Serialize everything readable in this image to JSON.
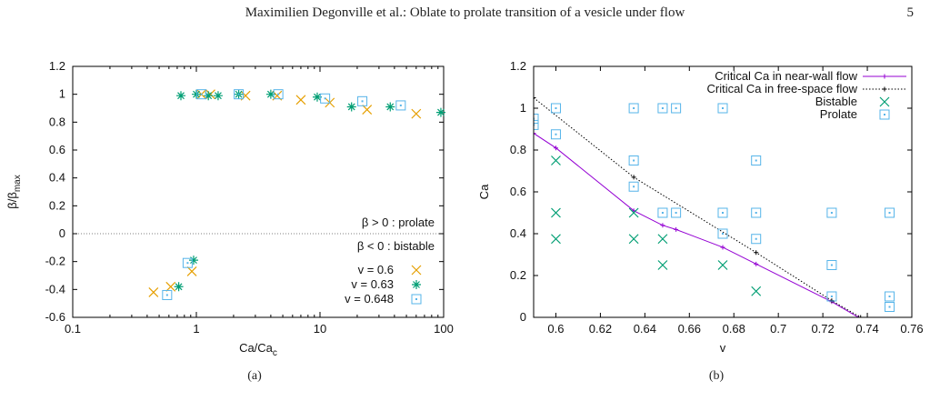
{
  "header": {
    "title": "Maximilien Degonville et al.: Oblate to prolate transition of a vesicle under flow",
    "page_number": "5"
  },
  "colors": {
    "orange": "#e69f00",
    "green": "#009e73",
    "blue": "#56b4e9",
    "purple": "#9400d3",
    "black": "#000000"
  },
  "panels": [
    {
      "caption": "(a)",
      "annotations": [
        "β > 0 : prolate",
        "β < 0 : bistable"
      ]
    },
    {
      "caption": "(b)"
    }
  ],
  "chart_data": [
    {
      "type": "scatter",
      "xlabel": "Ca/Ca",
      "xlabel_sub": "c",
      "ylabel": "β/β",
      "ylabel_sub": "max",
      "xscale": "log",
      "xlim": [
        0.1,
        100
      ],
      "ylim": [
        -0.6,
        1.2
      ],
      "x_ticks": [
        "0.1",
        "1",
        "10",
        "100"
      ],
      "y_ticks": [
        "-0.6",
        "-0.4",
        "-0.2",
        "0",
        "0.2",
        "0.4",
        "0.6",
        "0.8",
        "1",
        "1.2"
      ],
      "legend_position": "bottom-right",
      "series": [
        {
          "name": "v = 0.6",
          "marker": "x",
          "color": "#e69f00",
          "points": [
            [
              0.45,
              -0.42
            ],
            [
              0.62,
              -0.38
            ],
            [
              0.92,
              -0.27
            ],
            [
              1.1,
              1.0
            ],
            [
              1.3,
              1.0
            ],
            [
              2.5,
              0.99
            ],
            [
              4.5,
              0.99
            ],
            [
              7.0,
              0.96
            ],
            [
              12.0,
              0.94
            ],
            [
              24.0,
              0.89
            ],
            [
              60.0,
              0.86
            ]
          ]
        },
        {
          "name": "v = 0.63",
          "marker": "asterisk",
          "color": "#009e73",
          "points": [
            [
              0.72,
              -0.38
            ],
            [
              0.95,
              -0.19
            ],
            [
              0.75,
              0.99
            ],
            [
              1.0,
              1.0
            ],
            [
              1.25,
              0.99
            ],
            [
              1.5,
              0.99
            ],
            [
              2.2,
              1.0
            ],
            [
              4.0,
              1.0
            ],
            [
              9.5,
              0.98
            ],
            [
              18.0,
              0.91
            ],
            [
              37.0,
              0.91
            ],
            [
              95.0,
              0.87
            ]
          ]
        },
        {
          "name": "v = 0.648",
          "marker": "square",
          "color": "#56b4e9",
          "points": [
            [
              0.58,
              -0.44
            ],
            [
              0.85,
              -0.21
            ],
            [
              1.1,
              1.0
            ],
            [
              2.2,
              1.0
            ],
            [
              4.6,
              1.0
            ],
            [
              11.0,
              0.97
            ],
            [
              22.0,
              0.95
            ],
            [
              45.0,
              0.92
            ]
          ]
        }
      ]
    },
    {
      "type": "line",
      "xlabel": "v",
      "ylabel": "Ca",
      "xlim": [
        0.59,
        0.76
      ],
      "ylim": [
        0,
        1.2
      ],
      "x_ticks": [
        "0.6",
        "0.62",
        "0.64",
        "0.66",
        "0.68",
        "0.7",
        "0.72",
        "0.74",
        "0.76"
      ],
      "y_ticks": [
        "0",
        "0.2",
        "0.4",
        "0.6",
        "0.8",
        "1",
        "1.2"
      ],
      "legend_position": "top-right",
      "series": [
        {
          "name": "Critical Ca in near-wall flow",
          "style": "solid",
          "marker": "plus",
          "color": "#9400d3",
          "points": [
            [
              0.59,
              0.88
            ],
            [
              0.6,
              0.81
            ],
            [
              0.635,
              0.51
            ],
            [
              0.648,
              0.44
            ],
            [
              0.654,
              0.42
            ],
            [
              0.675,
              0.335
            ],
            [
              0.69,
              0.255
            ],
            [
              0.724,
              0.075
            ],
            [
              0.736,
              0.0
            ]
          ]
        },
        {
          "name": "Critical Ca in free-space flow",
          "style": "dotted",
          "marker": "plus",
          "color": "#000000",
          "points": [
            [
              0.59,
              1.05
            ],
            [
              0.635,
              0.67
            ],
            [
              0.69,
              0.31
            ],
            [
              0.724,
              0.08
            ],
            [
              0.737,
              0.0
            ]
          ]
        },
        {
          "name": "Bistable",
          "style": "none",
          "marker": "x",
          "color": "#009e73",
          "points": [
            [
              0.6,
              0.75
            ],
            [
              0.6,
              0.5
            ],
            [
              0.6,
              0.375
            ],
            [
              0.635,
              0.5
            ],
            [
              0.635,
              0.375
            ],
            [
              0.648,
              0.375
            ],
            [
              0.648,
              0.25
            ],
            [
              0.675,
              0.25
            ],
            [
              0.69,
              0.125
            ]
          ]
        },
        {
          "name": "Prolate",
          "style": "none",
          "marker": "square",
          "color": "#56b4e9",
          "points": [
            [
              0.59,
              0.95
            ],
            [
              0.59,
              0.92
            ],
            [
              0.6,
              1.0
            ],
            [
              0.6,
              0.875
            ],
            [
              0.635,
              1.0
            ],
            [
              0.635,
              0.75
            ],
            [
              0.635,
              0.625
            ],
            [
              0.648,
              1.0
            ],
            [
              0.654,
              1.0
            ],
            [
              0.675,
              1.0
            ],
            [
              0.648,
              0.5
            ],
            [
              0.654,
              0.5
            ],
            [
              0.675,
              0.5
            ],
            [
              0.675,
              0.4
            ],
            [
              0.69,
              0.75
            ],
            [
              0.69,
              0.5
            ],
            [
              0.69,
              0.375
            ],
            [
              0.724,
              0.5
            ],
            [
              0.724,
              0.25
            ],
            [
              0.724,
              0.1
            ],
            [
              0.75,
              0.5
            ],
            [
              0.75,
              0.1
            ],
            [
              0.75,
              0.05
            ]
          ]
        }
      ]
    }
  ]
}
